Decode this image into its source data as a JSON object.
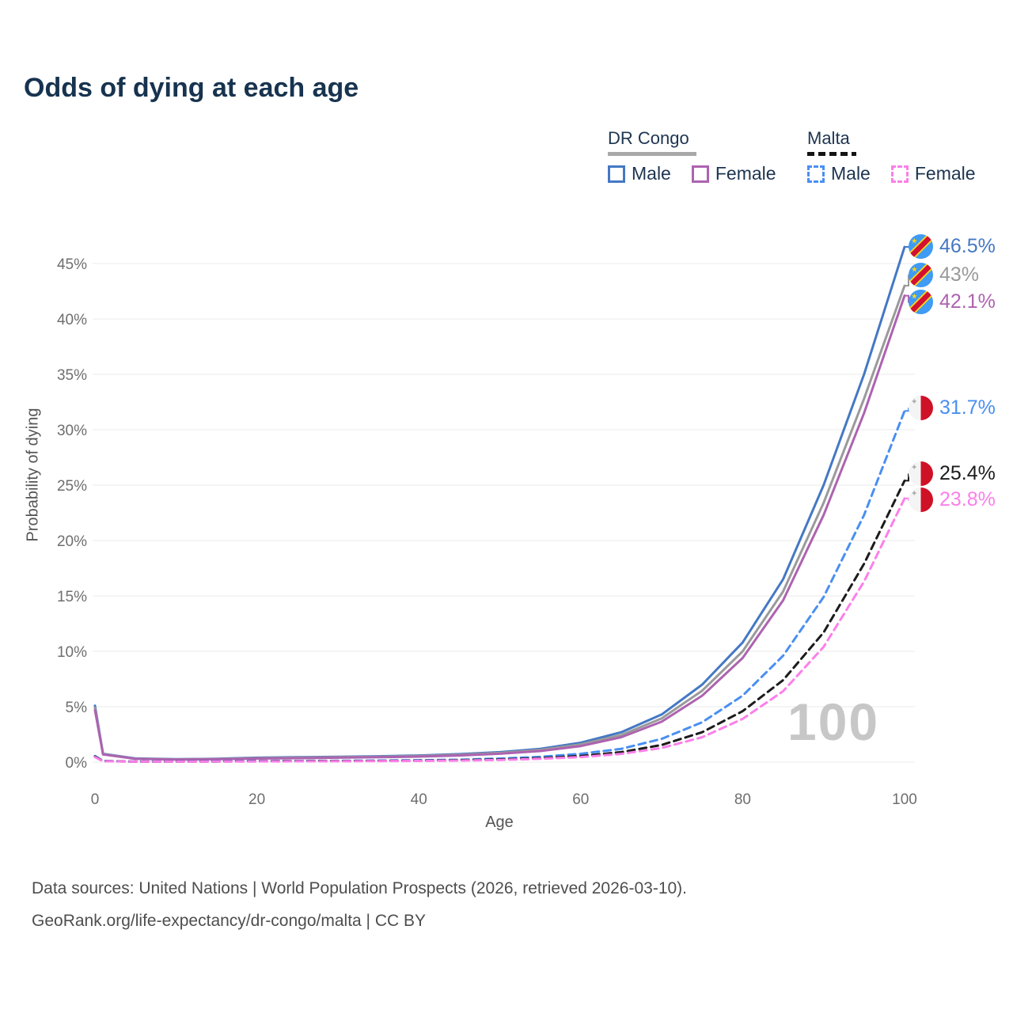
{
  "title": "Odds of dying at each age",
  "legend": {
    "groups": [
      {
        "label": "DR Congo",
        "line_style": "solid",
        "underline_color": "#a8a8a8",
        "items": [
          {
            "label": "Male",
            "color": "#4478c4"
          },
          {
            "label": "Female",
            "color": "#ad63b0"
          }
        ]
      },
      {
        "label": "Malta",
        "line_style": "dashed",
        "underline_color": "#141414",
        "items": [
          {
            "label": "Male",
            "color": "#4a8ff2"
          },
          {
            "label": "Female",
            "color": "#fc7fe9"
          }
        ]
      }
    ]
  },
  "chart_data": {
    "type": "line",
    "title": "Odds of dying at each age",
    "xlabel": "Age",
    "ylabel": "Probability of dying",
    "xlim": [
      0,
      100
    ],
    "ylim_percent": [
      0,
      47
    ],
    "x_ticks": [
      0,
      20,
      40,
      60,
      80,
      100
    ],
    "y_ticks_percent": [
      0,
      5,
      10,
      15,
      20,
      25,
      30,
      35,
      40,
      45
    ],
    "grid": "horizontal",
    "legend_position": "top-right",
    "watermark": "100",
    "x": [
      0,
      1,
      5,
      10,
      15,
      20,
      25,
      30,
      35,
      40,
      45,
      50,
      55,
      60,
      65,
      70,
      75,
      80,
      85,
      90,
      95,
      100
    ],
    "series": [
      {
        "name": "DR Congo Male",
        "color": "#4478c4",
        "dash": "solid",
        "flag": "dr-congo",
        "end_label": "46.5%",
        "values": [
          5.1,
          0.75,
          0.33,
          0.27,
          0.3,
          0.4,
          0.44,
          0.48,
          0.53,
          0.6,
          0.72,
          0.9,
          1.2,
          1.75,
          2.7,
          4.3,
          7.0,
          10.8,
          16.5,
          25.0,
          35.0,
          46.5
        ]
      },
      {
        "name": "DR Congo Both sexes",
        "color": "#9a9a9a",
        "dash": "solid",
        "flag": "dr-congo",
        "end_label": "43%",
        "values": [
          4.9,
          0.72,
          0.31,
          0.25,
          0.28,
          0.36,
          0.4,
          0.44,
          0.48,
          0.55,
          0.66,
          0.83,
          1.1,
          1.6,
          2.45,
          3.95,
          6.45,
          10.0,
          15.4,
          23.4,
          32.8,
          43.0
        ]
      },
      {
        "name": "DR Congo Female",
        "color": "#ad63b0",
        "dash": "solid",
        "flag": "dr-congo",
        "end_label": "42.1%",
        "values": [
          4.7,
          0.69,
          0.29,
          0.23,
          0.26,
          0.32,
          0.36,
          0.4,
          0.44,
          0.5,
          0.6,
          0.76,
          1.0,
          1.45,
          2.25,
          3.65,
          6.0,
          9.4,
          14.6,
          22.3,
          31.5,
          42.1
        ]
      },
      {
        "name": "Malta Male",
        "color": "#4a8ff2",
        "dash": "dashed",
        "flag": "malta",
        "end_label": "31.7%",
        "values": [
          0.55,
          0.1,
          0.05,
          0.06,
          0.08,
          0.1,
          0.11,
          0.12,
          0.14,
          0.17,
          0.22,
          0.32,
          0.48,
          0.75,
          1.2,
          2.1,
          3.6,
          6.0,
          9.6,
          14.9,
          22.3,
          31.7
        ]
      },
      {
        "name": "Malta Both sexes",
        "color": "#1c1c1c",
        "dash": "dashed",
        "flag": "malta",
        "end_label": "25.4%",
        "values": [
          0.5,
          0.09,
          0.04,
          0.05,
          0.06,
          0.08,
          0.09,
          0.1,
          0.11,
          0.13,
          0.17,
          0.24,
          0.36,
          0.56,
          0.9,
          1.55,
          2.7,
          4.6,
          7.4,
          11.7,
          17.9,
          25.4
        ]
      },
      {
        "name": "Malta Female",
        "color": "#fc7fe9",
        "dash": "dashed",
        "flag": "malta",
        "end_label": "23.8%",
        "values": [
          0.45,
          0.08,
          0.04,
          0.04,
          0.05,
          0.06,
          0.07,
          0.08,
          0.09,
          0.11,
          0.14,
          0.2,
          0.3,
          0.46,
          0.74,
          1.28,
          2.25,
          3.9,
          6.4,
          10.4,
          16.3,
          23.8
        ]
      }
    ]
  },
  "source": {
    "line1": "Data sources: United Nations | World Population Prospects (2026, retrieved 2026-03-10).",
    "line2": "GeoRank.org/life-expectancy/dr-congo/malta | CC BY"
  }
}
